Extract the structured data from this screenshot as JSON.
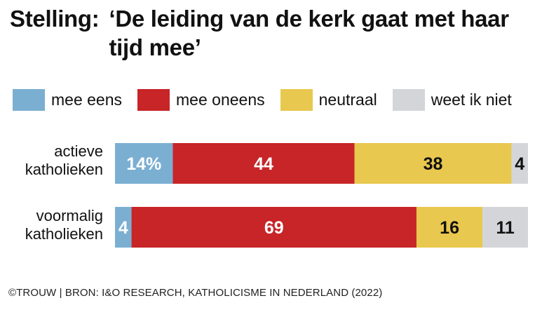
{
  "chart_data": {
    "type": "bar",
    "orientation": "horizontal",
    "stacked": true,
    "title_prefix": "Stelling:",
    "title": "‘De leiding van de kerk gaat met haar tijd mee’",
    "categories": [
      [
        "actieve",
        "katholieken"
      ],
      [
        "voormalig",
        "katholieken"
      ]
    ],
    "series": [
      {
        "name": "mee eens",
        "color": "#7bafd2",
        "values": [
          14,
          4
        ],
        "labels": [
          "14%",
          "4"
        ],
        "label_color": "#ffffff"
      },
      {
        "name": "mee oneens",
        "color": "#c72528",
        "values": [
          44,
          69
        ],
        "labels": [
          "44",
          "69"
        ],
        "label_color": "#ffffff"
      },
      {
        "name": "neutraal",
        "color": "#e8c84e",
        "values": [
          38,
          16
        ],
        "labels": [
          "38",
          "16"
        ],
        "label_color": "#111111"
      },
      {
        "name": "weet ik niet",
        "color": "#d3d5d9",
        "values": [
          4,
          11
        ],
        "labels": [
          "4",
          "11"
        ],
        "label_color": "#111111"
      }
    ],
    "xlim": [
      0,
      100
    ],
    "legend_position": "top",
    "grid": false
  },
  "footer": "©TROUW | BRON: I&O RESEARCH, KATHOLICISME IN NEDERLAND (2022)"
}
